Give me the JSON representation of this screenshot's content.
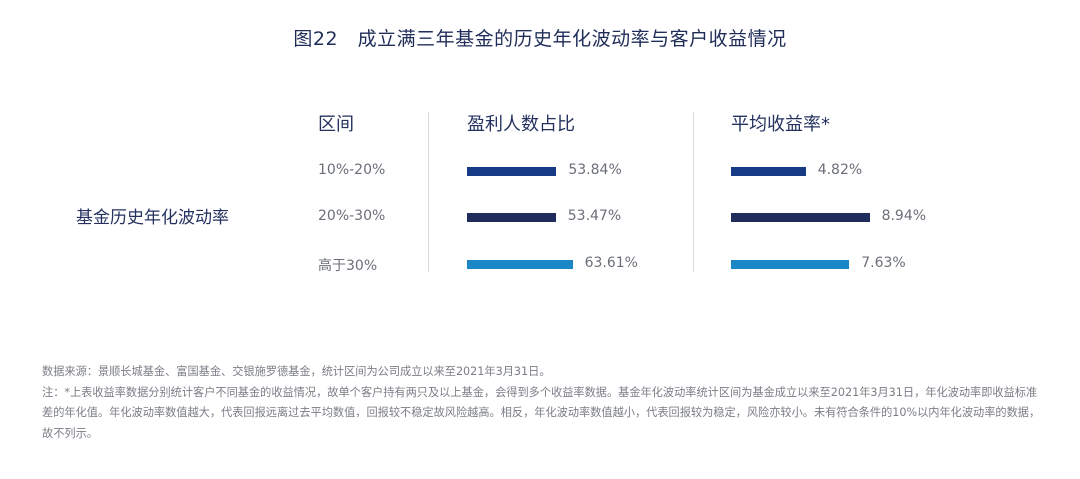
{
  "title": "图22　成立满三年基金的历史年化波动率与客户收益情况",
  "row_header": "基金历史年化波动率",
  "columns": {
    "range": "区间",
    "profit_ratio": "盈利人数占比",
    "avg_return": "平均收益率*"
  },
  "chart_data": {
    "type": "bar",
    "categories": [
      "10%-20%",
      "20%-30%",
      "高于30%"
    ],
    "series": [
      {
        "name": "盈利人数占比",
        "values": [
          53.84,
          53.47,
          63.61
        ],
        "labels": [
          "53.84%",
          "53.47%",
          "63.61%"
        ]
      },
      {
        "name": "平均收益率*",
        "values": [
          4.82,
          8.94,
          7.63
        ],
        "labels": [
          "4.82%",
          "8.94%",
          "7.63%"
        ]
      }
    ],
    "colors": [
      "#173a85",
      "#1f2c5c",
      "#1a88c6"
    ]
  },
  "notes": {
    "source": "数据来源：景顺长城基金、富国基金、交银施罗德基金，统计区间为公司成立以来至2021年3月31日。",
    "note": "注：*上表收益率数据分别统计客户不同基金的收益情况，故单个客户持有两只及以上基金，会得到多个收益率数据。基金年化波动率统计区间为基金成立以来至2021年3月31日，年化波动率即收益标准差的年化值。年化波动率数值越大，代表回报远离过去平均数值，回报较不稳定故风险越高。相反，年化波动率数值越小，代表回报较为稳定，风险亦较小。未有符合条件的10%以内年化波动率的数据，故不列示。"
  }
}
